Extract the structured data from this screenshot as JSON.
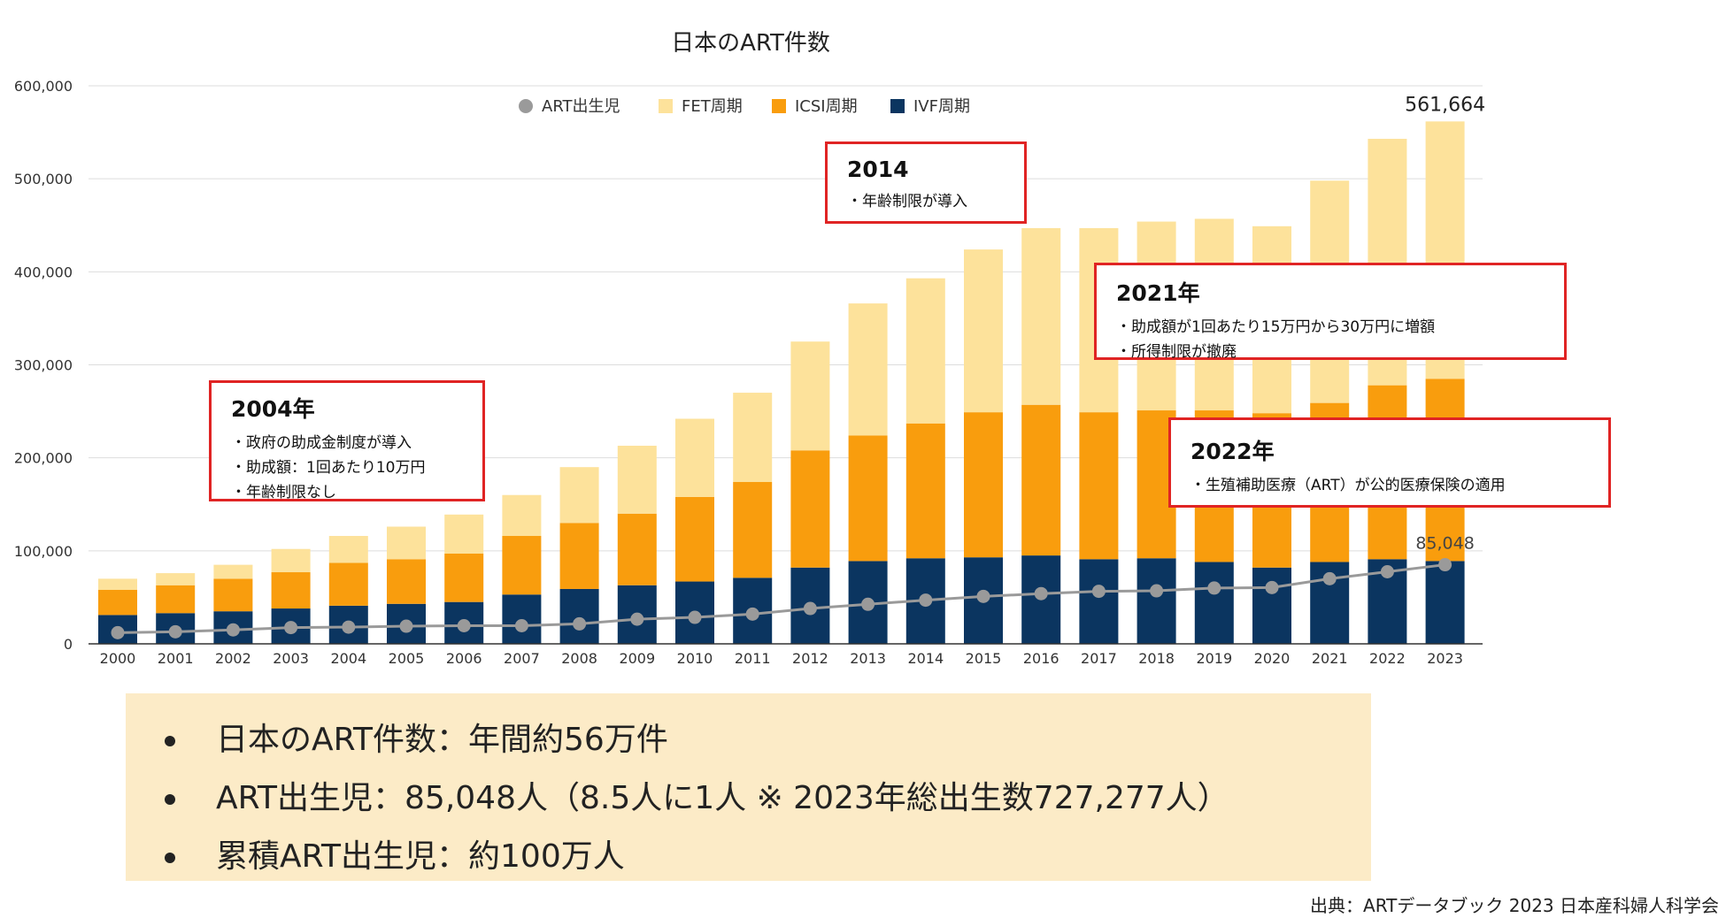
{
  "chart_data": {
    "type": "bar",
    "title": "日本のART件数",
    "categories": [
      "2000",
      "2001",
      "2002",
      "2003",
      "2004",
      "2005",
      "2006",
      "2007",
      "2008",
      "2009",
      "2010",
      "2011",
      "2012",
      "2013",
      "2014",
      "2015",
      "2016",
      "2017",
      "2018",
      "2019",
      "2020",
      "2021",
      "2022",
      "2023"
    ],
    "ylim": [
      0,
      600000
    ],
    "yticks": [
      "0",
      "100,000",
      "200,000",
      "300,000",
      "400,000",
      "500,000",
      "600,000"
    ],
    "grid": true,
    "legend": [
      "ART出生児",
      "FET周期",
      "ICSI周期",
      "IVF周期"
    ],
    "series": [
      {
        "name": "IVF周期",
        "color": "#0b3560",
        "values": [
          31000,
          33000,
          35000,
          38000,
          41000,
          43000,
          45000,
          53000,
          59000,
          63000,
          67000,
          71000,
          82000,
          89000,
          92000,
          93000,
          95000,
          91000,
          92000,
          88000,
          82000,
          88000,
          91000,
          89000
        ]
      },
      {
        "name": "ICSI周期",
        "color": "#f99d0d",
        "values": [
          27000,
          30000,
          35000,
          39000,
          46000,
          48000,
          52000,
          63000,
          71000,
          77000,
          91000,
          103000,
          126000,
          135000,
          145000,
          156000,
          162000,
          158000,
          159000,
          163000,
          166000,
          171000,
          187000,
          196000
        ]
      },
      {
        "name": "FET周期",
        "color": "#fde29b",
        "values": [
          12000,
          13000,
          15000,
          25000,
          29000,
          35000,
          42000,
          44000,
          60000,
          73000,
          84000,
          96000,
          117000,
          142000,
          156000,
          175000,
          190000,
          198000,
          203000,
          206000,
          201000,
          239000,
          265000,
          276664
        ]
      },
      {
        "name": "ART出生児",
        "type": "line",
        "color": "#9a9a9a",
        "values": [
          12000,
          13000,
          15000,
          17500,
          18000,
          19000,
          19500,
          19500,
          21500,
          26500,
          28500,
          32000,
          38000,
          42500,
          47000,
          51000,
          54000,
          56500,
          57000,
          60000,
          60500,
          70000,
          77500,
          85048
        ]
      }
    ],
    "data_labels": [
      {
        "category": "2023",
        "text": "561,664"
      },
      {
        "category": "2023",
        "text": "85,048"
      }
    ]
  },
  "annotations": [
    {
      "title": "2004年",
      "lines": [
        "・政府の助成金制度が導入",
        "・助成額：1回あたり10万円",
        "・年齢制限なし"
      ]
    },
    {
      "title": "2014",
      "lines": [
        "・年齢制限が導入"
      ]
    },
    {
      "title": "2021年",
      "lines": [
        "・助成額が1回あたり15万円から30万円に増額",
        "・所得制限が撤廃"
      ]
    },
    {
      "title": "2022年",
      "lines": [
        "・生殖補助医療（ART）が公的医療保険の適用"
      ]
    }
  ],
  "summary": {
    "items": [
      "日本のART件数：年間約56万件",
      "ART出生児：85,048人（8.5人に1人 ※ 2023年総出生数727,277人）",
      "累積ART出生児：約100万人"
    ]
  },
  "source": "出典：ARTデータブック 2023 日本産科婦人科学会"
}
